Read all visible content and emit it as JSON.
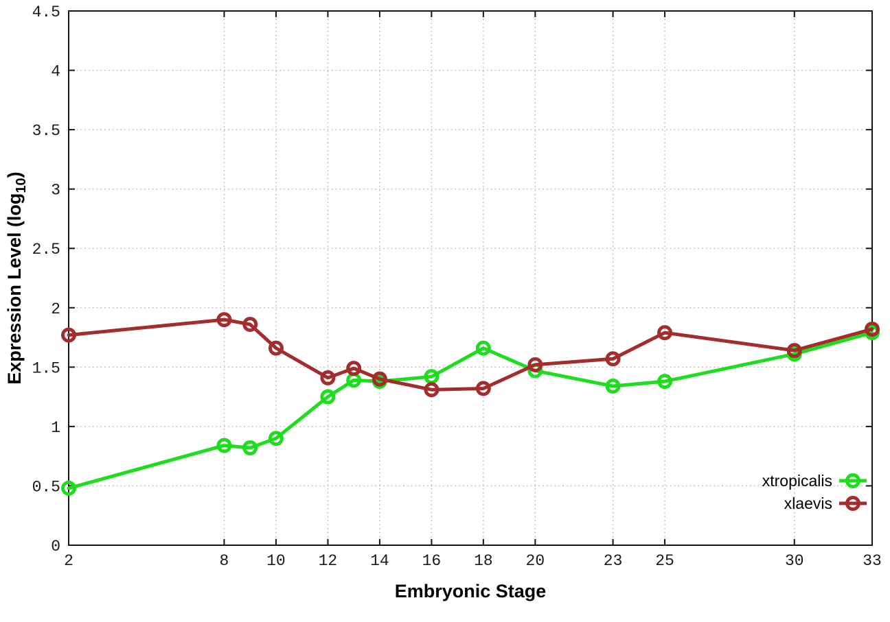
{
  "figure": {
    "background": "#ffffff",
    "border_color": "#141414",
    "grid_color": "#b3b3b3"
  },
  "chart_data": {
    "type": "line",
    "title": "",
    "xlabel": "Embryonic Stage",
    "ylabel": "Expression Level (log10)",
    "ylabel_parts": {
      "prefix": "Expression Level (log",
      "subscript": "10",
      "suffix": ")"
    },
    "xlim": [
      2,
      33
    ],
    "ylim": [
      0,
      4.5
    ],
    "grid": "dotted",
    "x": [
      2,
      8,
      9,
      10,
      12,
      13,
      14,
      16,
      18,
      20,
      23,
      25,
      30,
      33
    ],
    "series": [
      {
        "name": "xtropicalis",
        "color": "#1edc1e",
        "marker": "open-circle",
        "values": [
          0.48,
          0.84,
          0.82,
          0.9,
          1.25,
          1.39,
          1.38,
          1.42,
          1.66,
          1.47,
          1.34,
          1.38,
          1.61,
          1.79
        ]
      },
      {
        "name": "xlaevis",
        "color": "#a32c2c",
        "marker": "open-circle",
        "values": [
          1.77,
          1.9,
          1.86,
          1.66,
          1.41,
          1.49,
          1.4,
          1.31,
          1.32,
          1.52,
          1.57,
          1.79,
          1.64,
          1.82
        ]
      }
    ],
    "xticks": {
      "values": [
        2,
        8,
        10,
        12,
        14,
        16,
        18,
        20,
        23,
        25,
        30,
        33
      ],
      "labels": [
        "2",
        "8",
        "10",
        "12",
        "14",
        "16",
        "18",
        "20",
        "23",
        "25",
        "30",
        "33"
      ]
    },
    "yticks": {
      "values": [
        0,
        0.5,
        1,
        1.5,
        2,
        2.5,
        3,
        3.5,
        4,
        4.5
      ],
      "labels": [
        "0",
        "0.5",
        "1",
        "1.5",
        "2",
        "2.5",
        "3",
        "3.5",
        "4",
        "4.5"
      ]
    },
    "legend": {
      "position": "inside-bottom-right",
      "entries": [
        "xtropicalis",
        "xlaevis"
      ]
    }
  }
}
